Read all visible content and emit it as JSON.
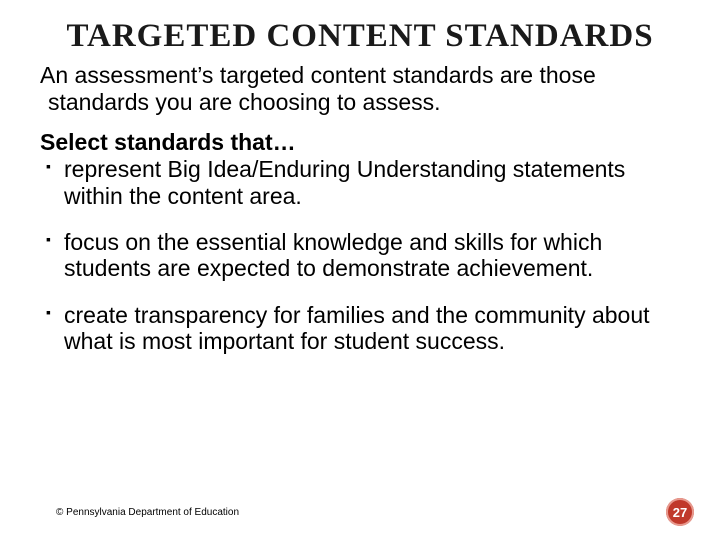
{
  "title": "TARGETED CONTENT STANDARDS",
  "intro": "An assessment’s targeted content standards are those standards you are choosing to assess.",
  "lead": "Select standards that…",
  "bullets": [
    "represent Big Idea/Enduring Understanding statements within the content area.",
    "focus on the essential knowledge and skills for which students are expected to demonstrate achievement.",
    "create transparency for families and the community about what is most important for student success."
  ],
  "footer": "© Pennsylvania Department of Education",
  "page_number": "27",
  "colors": {
    "badge_bg": "#c0392b",
    "badge_ring": "#e89a8f",
    "text": "#000000",
    "title": "#1a1a1a",
    "background": "#ffffff"
  },
  "typography": {
    "title_fontsize": 33,
    "body_fontsize": 23,
    "footer_fontsize": 10,
    "badge_fontsize": 13
  }
}
